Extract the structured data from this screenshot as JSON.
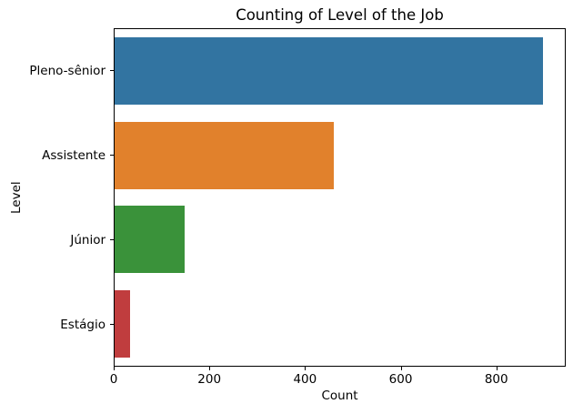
{
  "chart_data": {
    "type": "bar",
    "orientation": "horizontal",
    "title": "Counting of Level of the Job",
    "xlabel": "Count",
    "ylabel": "Level",
    "categories": [
      "Pleno-sênior",
      "Assistente",
      "Júnior",
      "Estágio"
    ],
    "values": [
      900,
      461,
      147,
      32
    ],
    "bar_colors": [
      "#3274a1",
      "#e1812c",
      "#3a923a",
      "#c03d3e"
    ],
    "xlim": [
      0,
      945
    ],
    "xticks": [
      0,
      200,
      400,
      600,
      800
    ],
    "grid": false,
    "legend": "none",
    "background_color": "#ffffff",
    "axis_color": "#000000"
  }
}
